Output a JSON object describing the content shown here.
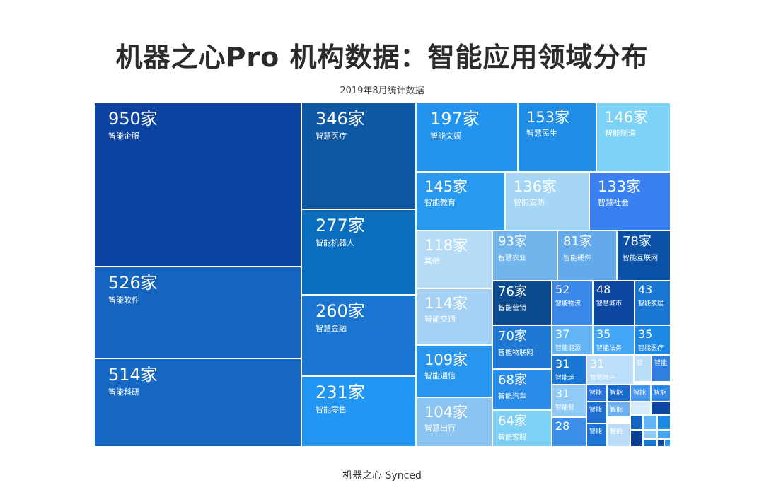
{
  "title": "机器之心Pro 机构数据：智能应用领域分布",
  "subtitle": "2019年8月统计数据",
  "footer": "机器之心 Synced",
  "chart_data": {
    "type": "treemap",
    "unit": "家",
    "items": [
      {
        "label": "智能企服",
        "value": 950,
        "color": "#0d43a0"
      },
      {
        "label": "智能软件",
        "value": 526,
        "color": "#1565c0"
      },
      {
        "label": "智能科研",
        "value": 514,
        "color": "#1668c4"
      },
      {
        "label": "智慧医疗",
        "value": 346,
        "color": "#0e58a4"
      },
      {
        "label": "智能机器人",
        "value": 277,
        "color": "#0b6dbd"
      },
      {
        "label": "智慧金融",
        "value": 260,
        "color": "#1a76d0"
      },
      {
        "label": "智能零售",
        "value": 231,
        "color": "#2196f3"
      },
      {
        "label": "智能文娱",
        "value": 197,
        "color": "#2293ee"
      },
      {
        "label": "智慧民生",
        "value": 153,
        "color": "#1f8de6"
      },
      {
        "label": "智能制造",
        "value": 146,
        "color": "#7dd3f7"
      },
      {
        "label": "智能教育",
        "value": 145,
        "color": "#2a9af0"
      },
      {
        "label": "智能安防",
        "value": 136,
        "color": "#a6d6f5"
      },
      {
        "label": "智慧社会",
        "value": 133,
        "color": "#3a80f0"
      },
      {
        "label": "其他",
        "value": 118,
        "color": "#b7dcf7"
      },
      {
        "label": "智慧农业",
        "value": 93,
        "color": "#72b4ec"
      },
      {
        "label": "智能硬件",
        "value": 81,
        "color": "#62aaea"
      },
      {
        "label": "智能互联网",
        "value": 78,
        "color": "#0b52a6"
      },
      {
        "label": "智能交通",
        "value": 114,
        "color": "#a5d1f4"
      },
      {
        "label": "智能营销",
        "value": 76,
        "color": "#0b4a8c"
      },
      {
        "label": "智能物流",
        "value": 52,
        "color": "#3a87ea"
      },
      {
        "label": "智慧城市",
        "value": 48,
        "color": "#0d47a1"
      },
      {
        "label": "智能家居",
        "value": 43,
        "color": "#1976d2"
      },
      {
        "label": "智能通信",
        "value": 109,
        "color": "#2895ee"
      },
      {
        "label": "智能物联网",
        "value": 70,
        "color": "#1f79d4"
      },
      {
        "label": "智能能源",
        "value": 37,
        "color": "#64b5f6"
      },
      {
        "label": "智能法务",
        "value": 35,
        "color": "#42a5f5"
      },
      {
        "label": "智能医疗",
        "value": 35,
        "color": "#1e88e5"
      },
      {
        "label": "智能运",
        "value": 31,
        "color": "#1976d2"
      },
      {
        "label": "智慧地产",
        "value": 31,
        "color": "#bbdefb"
      },
      {
        "label": "智能汽车",
        "value": 68,
        "color": "#2a8ce8"
      },
      {
        "label": "智能餐",
        "value": 31,
        "color": "#90caf9"
      },
      {
        "label": "智慧出行",
        "value": 104,
        "color": "#8dc5f2"
      },
      {
        "label": "智能客服",
        "value": 64,
        "color": "#7fd0f5"
      },
      {
        "label": "",
        "value": 28,
        "color": "#3b8fe8"
      }
    ],
    "small_labels": [
      "智",
      "智能",
      "智能",
      "智能",
      "智能",
      "智能",
      "智能",
      "智能",
      "智能",
      "智能"
    ]
  }
}
